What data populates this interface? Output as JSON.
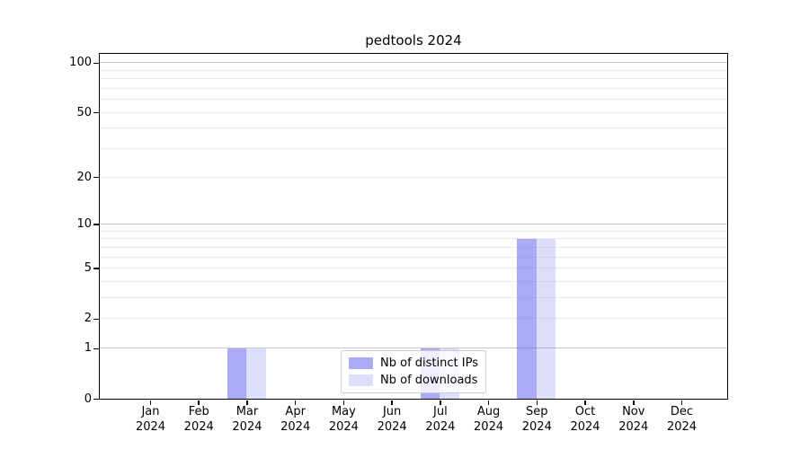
{
  "chart_data": {
    "type": "bar",
    "title": "pedtools 2024",
    "categories": [
      "Jan",
      "Feb",
      "Mar",
      "Apr",
      "May",
      "Jun",
      "Jul",
      "Aug",
      "Sep",
      "Oct",
      "Nov",
      "Dec"
    ],
    "category_year": "2024",
    "series": [
      {
        "name": "Nb of distinct IPs",
        "color": "rgba(85,85,240,0.5)",
        "values": [
          0,
          0,
          1,
          0,
          0,
          0,
          1,
          0,
          8,
          0,
          0,
          0
        ]
      },
      {
        "name": "Nb of downloads",
        "color": "rgba(85,85,240,0.2)",
        "values": [
          0,
          0,
          1,
          0,
          0,
          0,
          1,
          0,
          8,
          0,
          0,
          0
        ]
      }
    ],
    "yscale": "log1p",
    "ylim": [
      0,
      113
    ],
    "ytick_labels": [
      0,
      1,
      2,
      5,
      10,
      20,
      50,
      100
    ],
    "major_gridlines": [
      1,
      10,
      100
    ],
    "minor_gridlines": [
      2,
      3,
      4,
      5,
      6,
      7,
      8,
      9,
      20,
      30,
      40,
      50,
      60,
      70,
      80,
      90
    ],
    "grid": "on",
    "legend_position": "lower center",
    "colors": {
      "major_grid": "#c8c8c8",
      "minor_grid": "#ececec",
      "spine": "#000000",
      "text": "#000000"
    }
  }
}
